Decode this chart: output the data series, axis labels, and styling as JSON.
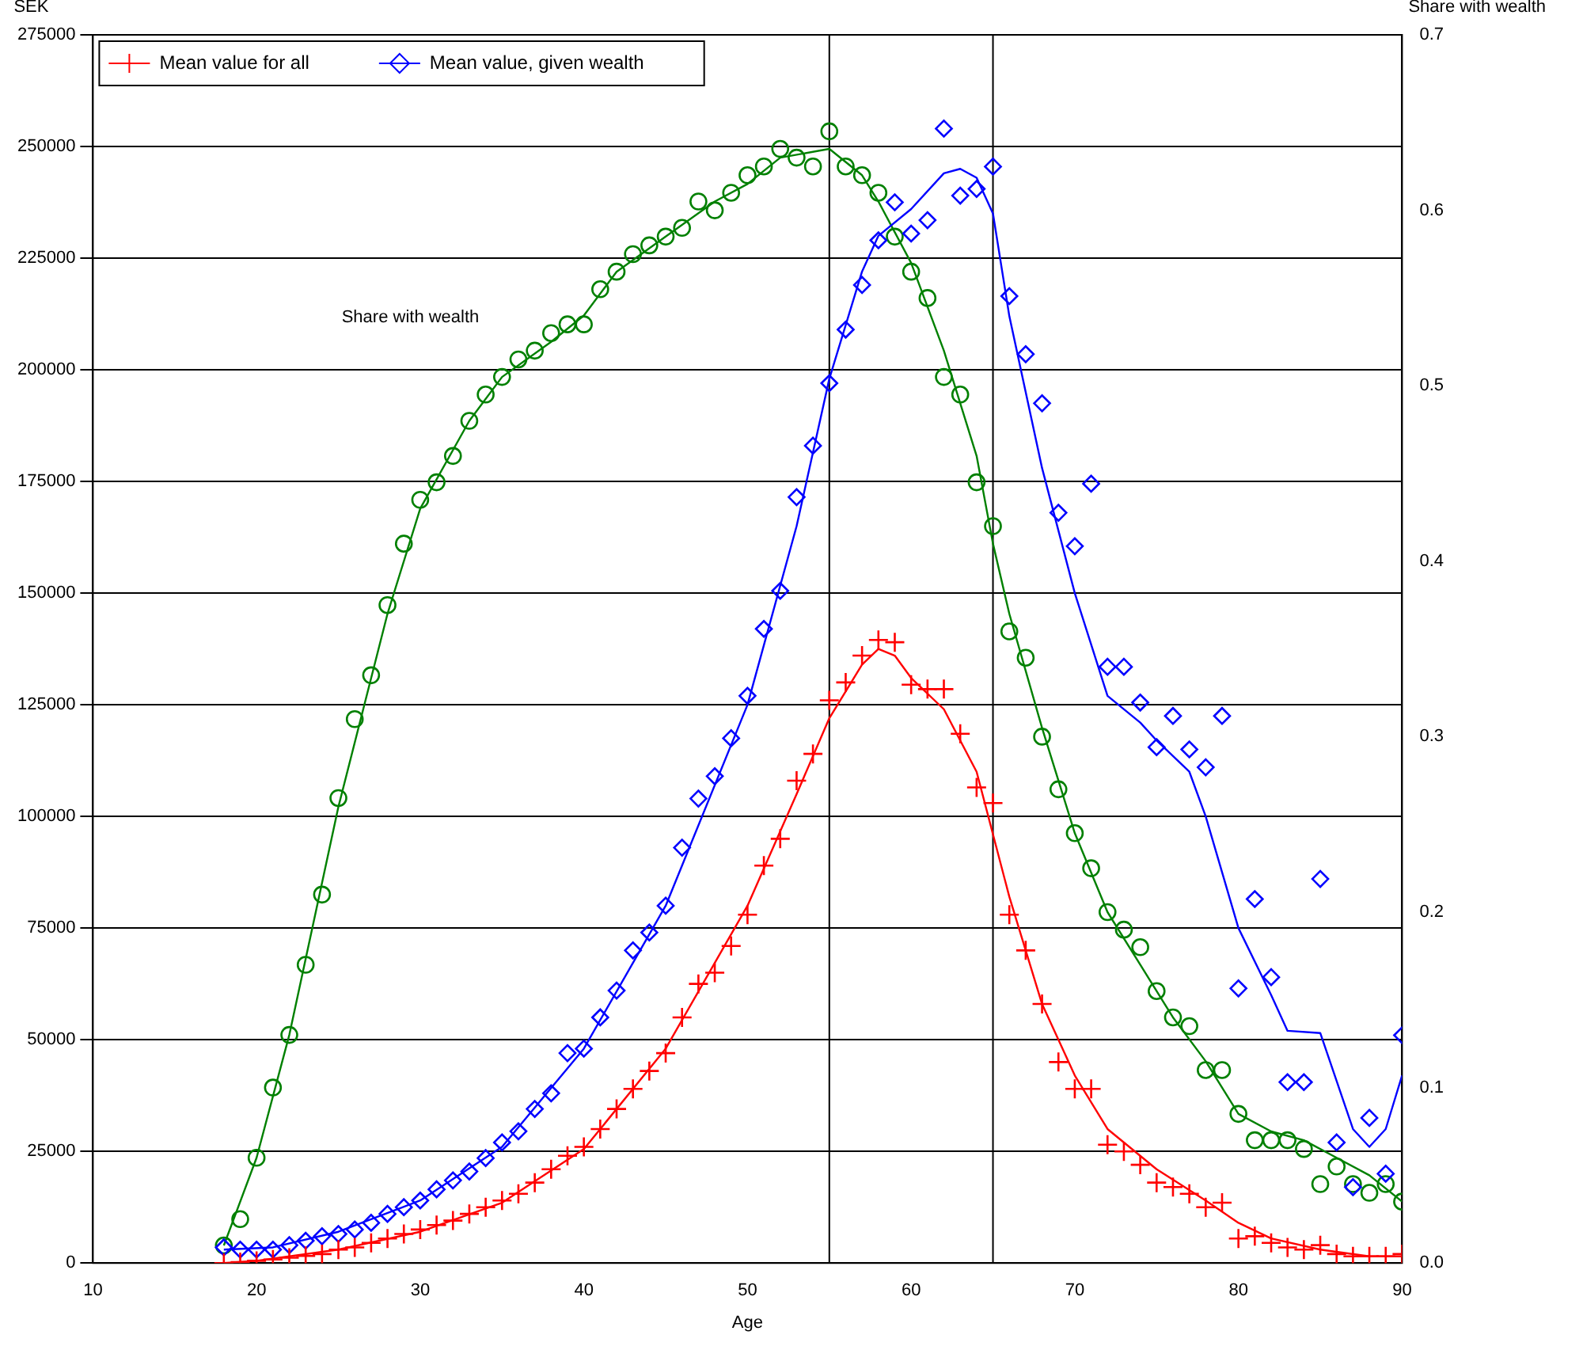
{
  "chart_data": {
    "type": "scatter",
    "xlabel": "Age",
    "ylabel": "SEK",
    "y2label": "Share with wealth",
    "xlim": [
      10,
      90
    ],
    "xticks": [
      10,
      20,
      30,
      40,
      50,
      60,
      70,
      80,
      90
    ],
    "ylim": [
      0,
      275000
    ],
    "yticks": [
      0,
      25000,
      50000,
      75000,
      100000,
      125000,
      150000,
      175000,
      200000,
      225000,
      250000,
      275000
    ],
    "y2lim": [
      0,
      0.7
    ],
    "y2ticks": [
      {
        "value": 0,
        "label": "0.0"
      },
      0.1,
      0.2,
      0.3,
      0.4,
      0.5,
      0.6,
      0.7
    ],
    "grid": "y",
    "legend": "top left",
    "ref_lines": [
      {
        "axis": "x",
        "value": 55,
        "color": "#000000"
      },
      {
        "axis": "x",
        "value": 65,
        "color": "#000000"
      }
    ],
    "annotations": [
      "Share with wealth"
    ],
    "series": [
      {
        "name": "Mean value for all",
        "marker": "cross",
        "color": "#ff0000",
        "x": [
          18,
          19,
          20,
          21,
          22,
          23,
          24,
          25,
          26,
          27,
          28,
          29,
          30,
          31,
          32,
          33,
          34,
          35,
          36,
          37,
          38,
          39,
          40,
          41,
          42,
          43,
          44,
          45,
          46,
          47,
          48,
          49,
          50,
          51,
          52,
          53,
          54,
          55,
          56,
          57,
          58,
          59,
          60,
          61,
          62,
          63,
          64,
          65,
          66,
          67,
          68,
          69,
          70,
          71,
          72,
          73,
          74,
          75,
          76,
          77,
          78,
          79,
          80,
          81,
          82,
          83,
          84,
          85,
          86,
          87,
          88,
          89,
          90
        ],
        "values": [
          0,
          200,
          500,
          800,
          1200,
          1600,
          2000,
          3000,
          3500,
          4500,
          5500,
          6500,
          7500,
          8500,
          9500,
          11000,
          12500,
          14000,
          15500,
          18000,
          21000,
          24000,
          26000,
          30000,
          34500,
          39000,
          43000,
          47000,
          55000,
          62500,
          65000,
          71000,
          78000,
          89000,
          95000,
          108000,
          114000,
          126000,
          130000,
          136000,
          139500,
          139000,
          129500,
          128500,
          128500,
          118500,
          106500,
          103000,
          78000,
          70000,
          58000,
          45000,
          39000,
          39000,
          26500,
          25000,
          22000,
          18000,
          17000,
          15500,
          12500,
          13500,
          5500,
          6000,
          4500,
          3500,
          3000,
          4000,
          2000,
          1500,
          1500,
          1500,
          2000
        ]
      },
      {
        "name": "Mean value, given wealth",
        "marker": "diamond",
        "color": "#0000ff",
        "x": [
          18,
          19,
          20,
          21,
          22,
          23,
          24,
          25,
          26,
          27,
          28,
          29,
          30,
          31,
          32,
          33,
          34,
          35,
          36,
          37,
          38,
          39,
          40,
          41,
          42,
          43,
          44,
          45,
          46,
          47,
          48,
          49,
          50,
          51,
          52,
          53,
          54,
          55,
          56,
          57,
          58,
          59,
          60,
          61,
          62,
          63,
          64,
          65,
          66,
          67,
          68,
          69,
          70,
          71,
          72,
          73,
          74,
          75,
          76,
          77,
          78,
          79,
          80,
          81,
          82,
          83,
          84,
          85,
          86,
          87,
          88,
          89,
          90
        ],
        "values": [
          3500,
          3000,
          3000,
          3000,
          4000,
          5000,
          6000,
          6500,
          7500,
          9000,
          11000,
          12500,
          14000,
          16500,
          18500,
          20500,
          23500,
          27000,
          29500,
          34500,
          38000,
          47000,
          48000,
          55000,
          61000,
          70000,
          74000,
          80000,
          93000,
          104000,
          109000,
          117500,
          127000,
          142000,
          150500,
          171500,
          183000,
          197000,
          209000,
          219000,
          229000,
          237500,
          230500,
          233500,
          254000,
          239000,
          240500,
          245500,
          216500,
          203500,
          192500,
          168000,
          160500,
          174500,
          133500,
          133500,
          125500,
          115500,
          122500,
          115000,
          111000,
          122500,
          61500,
          81500,
          64000,
          40500,
          40500,
          86000,
          27000,
          17000,
          32500,
          20000,
          51000
        ]
      },
      {
        "marker": "circle",
        "color": "#008000",
        "axis": "y2",
        "x": [
          18,
          19,
          20,
          21,
          22,
          23,
          24,
          25,
          26,
          27,
          28,
          29,
          30,
          31,
          32,
          33,
          34,
          35,
          36,
          37,
          38,
          39,
          40,
          41,
          42,
          43,
          44,
          45,
          46,
          47,
          48,
          49,
          50,
          51,
          52,
          53,
          54,
          55,
          56,
          57,
          58,
          59,
          60,
          61,
          62,
          63,
          64,
          65,
          66,
          67,
          68,
          69,
          70,
          71,
          72,
          73,
          74,
          75,
          76,
          77,
          78,
          79,
          80,
          81,
          82,
          83,
          84,
          85,
          86,
          87,
          88,
          89,
          90
        ],
        "values": [
          0.01,
          0.025,
          0.06,
          0.1,
          0.13,
          0.17,
          0.21,
          0.265,
          0.31,
          0.335,
          0.375,
          0.41,
          0.435,
          0.445,
          0.46,
          0.48,
          0.495,
          0.505,
          0.515,
          0.52,
          0.53,
          0.535,
          0.535,
          0.555,
          0.565,
          0.575,
          0.58,
          0.585,
          0.59,
          0.605,
          0.6,
          0.61,
          0.62,
          0.625,
          0.635,
          0.63,
          0.625,
          0.645,
          0.625,
          0.62,
          0.61,
          0.585,
          0.565,
          0.55,
          0.505,
          0.495,
          0.445,
          0.42,
          0.36,
          0.345,
          0.3,
          0.27,
          0.245,
          0.225,
          0.2,
          0.19,
          0.18,
          0.155,
          0.14,
          0.135,
          0.11,
          0.11,
          0.085,
          0.07,
          0.07,
          0.07,
          0.065,
          0.045,
          0.055,
          0.045,
          0.04,
          0.045,
          0.035
        ]
      },
      {
        "type": "line",
        "marker": "none",
        "color": "#ff0000",
        "x": [
          18,
          20,
          25,
          30,
          35,
          40,
          45,
          50,
          53,
          55,
          57,
          58,
          59,
          60,
          62,
          64,
          65,
          66,
          68,
          70,
          72,
          75,
          78,
          80,
          82,
          85,
          88,
          90
        ],
        "values": [
          0,
          500,
          3000,
          7000,
          13500,
          25500,
          48000,
          80000,
          105000,
          122000,
          134000,
          137500,
          136000,
          131000,
          124000,
          110000,
          96000,
          82000,
          58000,
          42000,
          30000,
          21000,
          14000,
          9000,
          5500,
          3000,
          1500,
          1500
        ]
      },
      {
        "type": "line",
        "marker": "none",
        "color": "#0000ff",
        "x": [
          18,
          21,
          25,
          30,
          35,
          40,
          45,
          50,
          53,
          55,
          57,
          58,
          60,
          62,
          63,
          64,
          65,
          66,
          68,
          70,
          72,
          74,
          75,
          77,
          78,
          80,
          82,
          83,
          85,
          87,
          88,
          89,
          90
        ],
        "values": [
          3000,
          3500,
          7000,
          14000,
          26000,
          48000,
          80000,
          125000,
          165000,
          198000,
          222000,
          230000,
          236000,
          244000,
          245000,
          243000,
          235000,
          212000,
          178000,
          150000,
          127000,
          121000,
          117000,
          110000,
          100000,
          75000,
          60000,
          52000,
          51500,
          30000,
          26000,
          30000,
          42000
        ]
      },
      {
        "type": "line",
        "marker": "none",
        "color": "#008000",
        "axis": "y2",
        "x": [
          18,
          20,
          22,
          25,
          28,
          30,
          33,
          35,
          38,
          40,
          42,
          45,
          48,
          50,
          52,
          55,
          57,
          58,
          60,
          62,
          64,
          65,
          66,
          68,
          70,
          72,
          74,
          76,
          78,
          80,
          82,
          84,
          86,
          88,
          90
        ],
        "values": [
          0.01,
          0.06,
          0.13,
          0.26,
          0.37,
          0.43,
          0.48,
          0.505,
          0.525,
          0.54,
          0.565,
          0.585,
          0.605,
          0.615,
          0.63,
          0.635,
          0.62,
          0.605,
          0.57,
          0.52,
          0.46,
          0.41,
          0.37,
          0.305,
          0.245,
          0.2,
          0.17,
          0.14,
          0.115,
          0.085,
          0.075,
          0.07,
          0.06,
          0.05,
          0.035
        ]
      }
    ]
  }
}
